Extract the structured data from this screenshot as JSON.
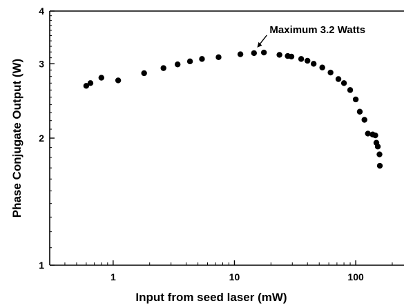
{
  "chart_data": {
    "type": "scatter",
    "title": "",
    "xlabel": "Input from seed laser (mW)",
    "ylabel": "Phase Conjugate Output (W)",
    "xscale": "log",
    "yscale": "log",
    "xlim": [
      0.3,
      250
    ],
    "ylim": [
      1,
      4
    ],
    "xticks": [
      {
        "value": 1,
        "label": "1"
      },
      {
        "value": 10,
        "label": "10"
      },
      {
        "value": 100,
        "label": "100"
      }
    ],
    "yticks": [
      {
        "value": 1,
        "label": "1"
      },
      {
        "value": 2,
        "label": "2"
      },
      {
        "value": 3,
        "label": "3"
      },
      {
        "value": 4,
        "label": "4"
      }
    ],
    "grid": false,
    "annotation": {
      "text": "Maximum 3.2 Watts",
      "x": 15,
      "y": 3.18
    },
    "x": [
      0.6,
      0.65,
      0.8,
      1.1,
      1.8,
      2.6,
      3.4,
      4.3,
      5.4,
      7.4,
      11.2,
      14.5,
      17.5,
      23.5,
      27.5,
      29.5,
      35.5,
      40,
      45,
      53,
      62,
      72,
      80,
      90,
      100,
      108,
      118,
      126,
      138,
      145,
      148,
      152,
      157,
      158
    ],
    "y": [
      2.66,
      2.7,
      2.78,
      2.74,
      2.85,
      2.93,
      2.99,
      3.04,
      3.08,
      3.11,
      3.16,
      3.18,
      3.19,
      3.15,
      3.13,
      3.12,
      3.08,
      3.05,
      3.0,
      2.94,
      2.86,
      2.76,
      2.7,
      2.6,
      2.47,
      2.31,
      2.21,
      2.05,
      2.04,
      2.03,
      1.95,
      1.91,
      1.83,
      1.72
    ]
  }
}
